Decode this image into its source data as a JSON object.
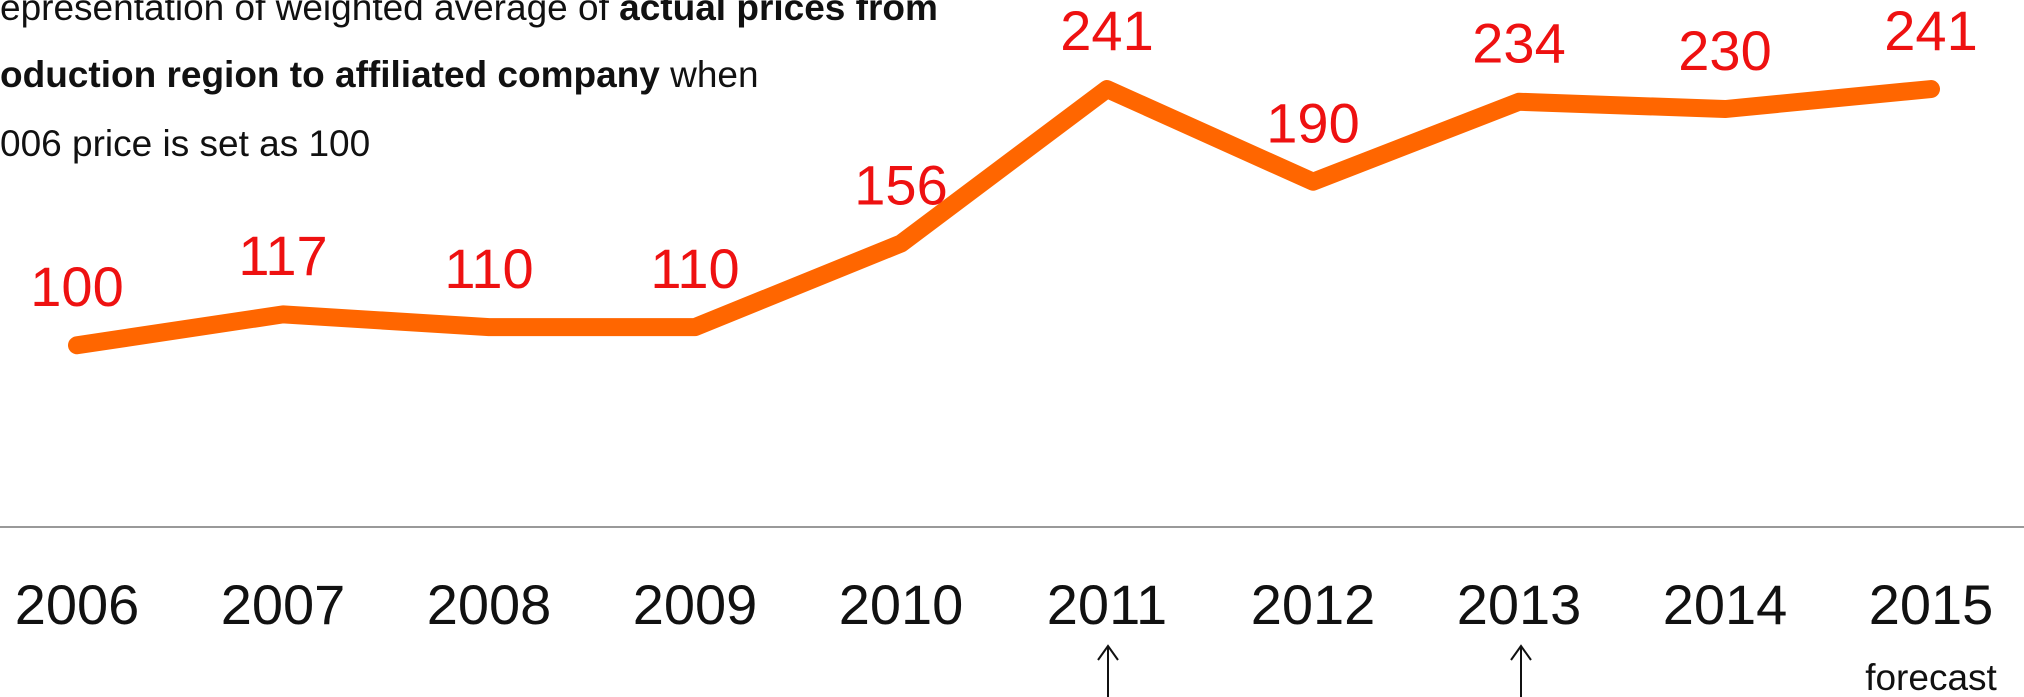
{
  "chart_data": {
    "type": "line",
    "note": [
      [
        {
          "text": "epresentation of weighted average of "
        },
        {
          "text": "actual prices from",
          "bold": true
        }
      ],
      [
        {
          "text": "oduction region to affiliated company",
          "bold": true
        },
        {
          "text": " when"
        }
      ],
      [
        {
          "text": "006 price is set as 100"
        }
      ]
    ],
    "categories": [
      "2006",
      "2007",
      "2008",
      "2009",
      "2010",
      "2011",
      "2012",
      "2013",
      "2014",
      "2015"
    ],
    "series": [
      {
        "color": "#ff6600",
        "values": [
          100,
          117,
          110,
          110,
          156,
          241,
          190,
          234,
          230,
          241
        ]
      }
    ],
    "ylim": [
      0,
      290
    ],
    "annotations": [
      {
        "category": 9,
        "text": "forecast"
      }
    ]
  }
}
